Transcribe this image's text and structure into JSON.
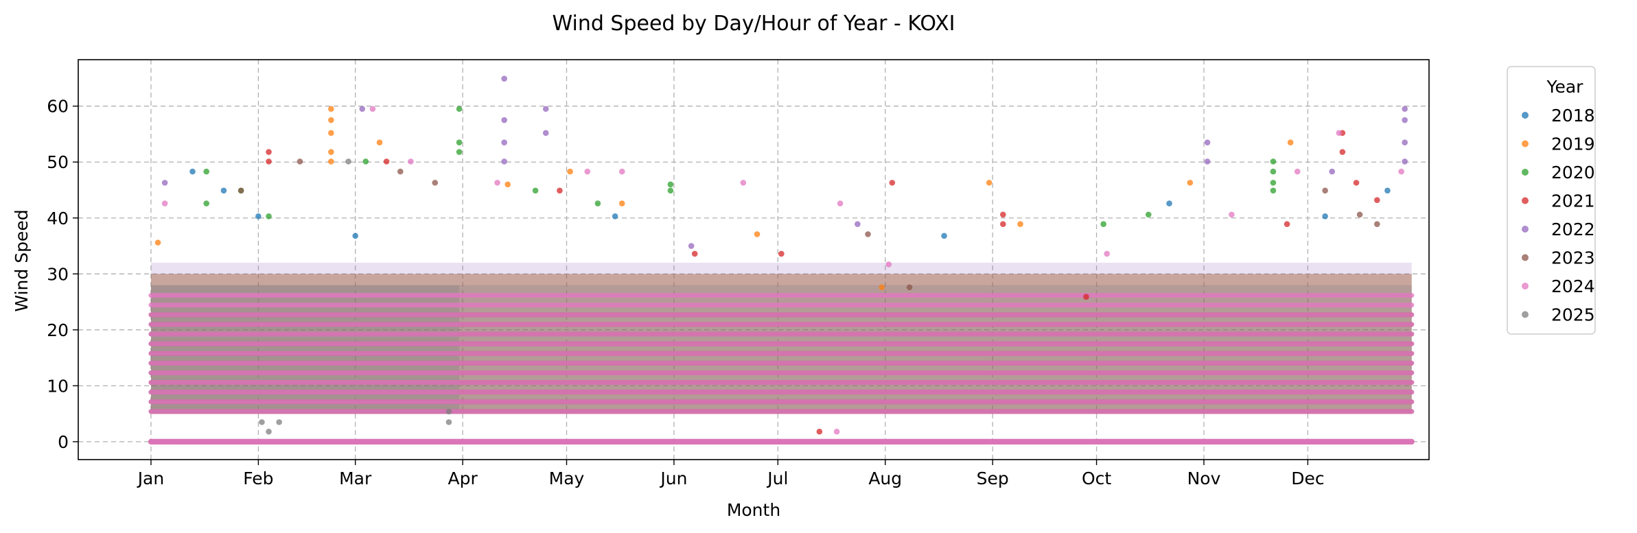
{
  "chart_data": {
    "type": "scatter",
    "title": "Wind Speed by Day/Hour of Year - KOXI",
    "xlabel": "Month",
    "ylabel": "Wind Speed",
    "xlim": [
      -20,
      370
    ],
    "ylim": [
      -3.2,
      68.3
    ],
    "x_ticks": [
      {
        "value": 1,
        "label": "Jan"
      },
      {
        "value": 32,
        "label": "Feb"
      },
      {
        "value": 60,
        "label": "Mar"
      },
      {
        "value": 91,
        "label": "Apr"
      },
      {
        "value": 121,
        "label": "May"
      },
      {
        "value": 152,
        "label": "Jun"
      },
      {
        "value": 182,
        "label": "Jul"
      },
      {
        "value": 213,
        "label": "Aug"
      },
      {
        "value": 244,
        "label": "Sep"
      },
      {
        "value": 274,
        "label": "Oct"
      },
      {
        "value": 305,
        "label": "Nov"
      },
      {
        "value": 335,
        "label": "Dec"
      }
    ],
    "y_ticks": [
      0,
      10,
      20,
      30,
      40,
      50,
      60
    ],
    "grid": true,
    "legend": {
      "title": "Year",
      "placement": "outside-right-top"
    },
    "series": [
      {
        "name": "2018",
        "color": "#1f77b4",
        "days": [
          1,
          365
        ],
        "points": [
          [
            13,
            48.3
          ],
          [
            22,
            44.9
          ],
          [
            32,
            40.3
          ],
          [
            60,
            36.8
          ],
          [
            135,
            40.3
          ],
          [
            230,
            36.8
          ],
          [
            295,
            42.6
          ],
          [
            340,
            40.3
          ],
          [
            358,
            44.9
          ]
        ]
      },
      {
        "name": "2019",
        "color": "#ff7f0e",
        "days": [
          1,
          365
        ],
        "points": [
          [
            3,
            35.6
          ],
          [
            53,
            59.5
          ],
          [
            53,
            57.5
          ],
          [
            53,
            55.2
          ],
          [
            53,
            51.8
          ],
          [
            53,
            50.1
          ],
          [
            67,
            53.5
          ],
          [
            104,
            46.0
          ],
          [
            122,
            48.3
          ],
          [
            137,
            42.6
          ],
          [
            176,
            37.1
          ],
          [
            212,
            27.6
          ],
          [
            243,
            46.3
          ],
          [
            252,
            38.9
          ],
          [
            301,
            46.3
          ],
          [
            330,
            53.5
          ]
        ]
      },
      {
        "name": "2020",
        "color": "#2ca02c",
        "days": [
          1,
          365
        ],
        "points": [
          [
            17,
            48.3
          ],
          [
            17,
            42.6
          ],
          [
            27,
            44.9
          ],
          [
            35,
            40.3
          ],
          [
            63,
            50.1
          ],
          [
            90,
            59.5
          ],
          [
            90,
            53.5
          ],
          [
            90,
            51.8
          ],
          [
            112,
            44.9
          ],
          [
            130,
            42.6
          ],
          [
            151,
            46.0
          ],
          [
            151,
            44.9
          ],
          [
            276,
            38.9
          ],
          [
            289,
            40.6
          ],
          [
            325,
            50.1
          ],
          [
            325,
            48.3
          ],
          [
            325,
            46.3
          ],
          [
            325,
            44.9
          ]
        ]
      },
      {
        "name": "2021",
        "color": "#d62728",
        "days": [
          1,
          365
        ],
        "points": [
          [
            35,
            51.8
          ],
          [
            35,
            50.1
          ],
          [
            69,
            50.1
          ],
          [
            119,
            44.9
          ],
          [
            158,
            33.6
          ],
          [
            183,
            33.6
          ],
          [
            194,
            1.8
          ],
          [
            215,
            46.3
          ],
          [
            247,
            40.6
          ],
          [
            247,
            38.9
          ],
          [
            271,
            25.9
          ],
          [
            329,
            38.9
          ],
          [
            345,
            55.2
          ],
          [
            345,
            51.8
          ],
          [
            349,
            46.3
          ],
          [
            355,
            43.2
          ]
        ]
      },
      {
        "name": "2022",
        "color": "#9467bd",
        "days": [
          1,
          365
        ],
        "points": [
          [
            5,
            46.3
          ],
          [
            62,
            59.5
          ],
          [
            103,
            64.9
          ],
          [
            103,
            57.5
          ],
          [
            103,
            53.5
          ],
          [
            103,
            50.1
          ],
          [
            115,
            59.5
          ],
          [
            115,
            55.2
          ],
          [
            157,
            35.0
          ],
          [
            205,
            38.9
          ],
          [
            306,
            53.5
          ],
          [
            306,
            50.1
          ],
          [
            342,
            48.3
          ],
          [
            363,
            59.5
          ],
          [
            363,
            57.5
          ],
          [
            363,
            53.5
          ],
          [
            363,
            50.1
          ]
        ]
      },
      {
        "name": "2023",
        "color": "#8c564b",
        "days": [
          1,
          365
        ],
        "points": [
          [
            27,
            44.9
          ],
          [
            44,
            50.1
          ],
          [
            73,
            48.3
          ],
          [
            83,
            46.3
          ],
          [
            208,
            37.1
          ],
          [
            220,
            27.6
          ],
          [
            340,
            44.9
          ],
          [
            350,
            40.6
          ],
          [
            355,
            38.9
          ]
        ]
      },
      {
        "name": "2024",
        "color": "#e377c2",
        "days": [
          1,
          365
        ],
        "points": [
          [
            5,
            42.6
          ],
          [
            65,
            59.5
          ],
          [
            76,
            50.1
          ],
          [
            101,
            46.3
          ],
          [
            127,
            48.3
          ],
          [
            137,
            48.3
          ],
          [
            172,
            46.3
          ],
          [
            199,
            1.8
          ],
          [
            200,
            42.6
          ],
          [
            214,
            31.7
          ],
          [
            277,
            33.6
          ],
          [
            313,
            40.6
          ],
          [
            332,
            48.3
          ],
          [
            344,
            55.2
          ],
          [
            362,
            48.3
          ]
        ]
      },
      {
        "name": "2025",
        "color": "#7f7f7f",
        "days": [
          1,
          90
        ],
        "points": [
          [
            33,
            3.5
          ],
          [
            35,
            1.8
          ],
          [
            38,
            3.5
          ],
          [
            58,
            50.1
          ],
          [
            87,
            3.5
          ],
          [
            87,
            5.4
          ]
        ]
      }
    ]
  }
}
